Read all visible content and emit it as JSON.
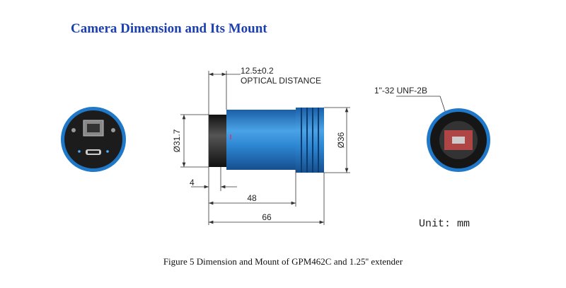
{
  "header": {
    "title": "Camera Dimension and Its Mount"
  },
  "dimensions": {
    "optical_distance": "12.5±0.2",
    "optical_distance_label": "OPTICAL DISTANCE",
    "front_diameter": "Ø31.7",
    "body_diameter": "Ø36",
    "front_length": "4",
    "body_length": "48",
    "total_length": "66"
  },
  "mount": {
    "thread": "1\"-32 UNF-2B"
  },
  "unit": "Unit: mm",
  "caption": "Figure 5 Dimension and Mount of GPM462C and 1.25'' extender"
}
